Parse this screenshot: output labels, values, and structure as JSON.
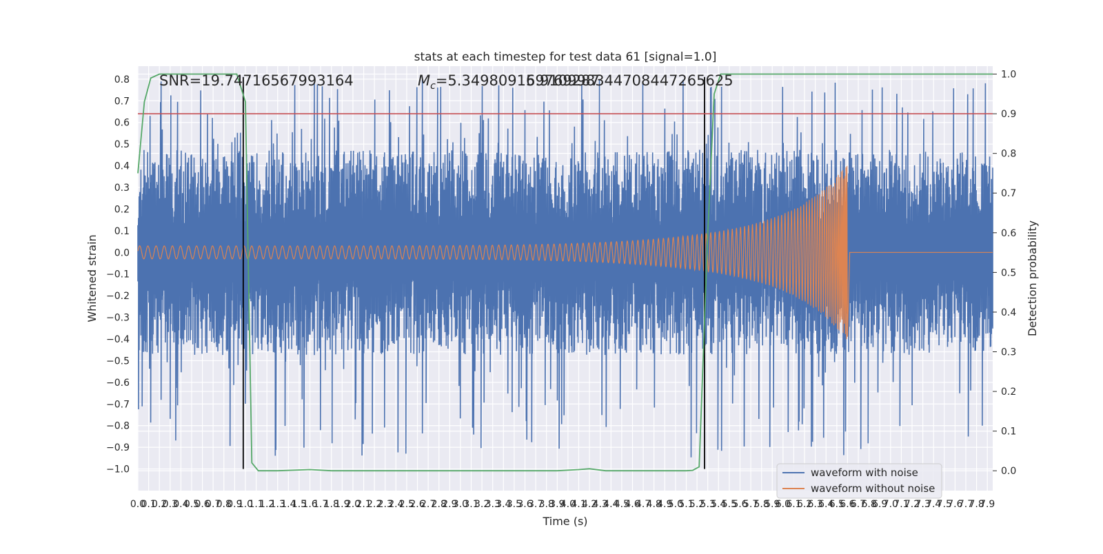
{
  "chart_data": {
    "type": "line",
    "title": "stats at each timestep for test data 61 [signal=1.0]",
    "xlabel": "Time (s)",
    "ylabel": "Whitened strain",
    "ylabel_right": "Detection probability",
    "xlim": [
      0.0,
      7.95
    ],
    "ylim": [
      -1.1,
      0.86
    ],
    "ylim_right": [
      -0.05,
      1.02
    ],
    "x_ticks": [
      "0.0",
      "0.1",
      "0.2",
      "0.3",
      "0.4",
      "0.5",
      "0.6",
      "0.7",
      "0.8",
      "0.9",
      "1.0",
      "1.1",
      "1.2",
      "1.3",
      "1.4",
      "1.5",
      "1.6",
      "1.7",
      "1.8",
      "1.9",
      "2.0",
      "2.1",
      "2.2",
      "2.3",
      "2.4",
      "2.5",
      "2.6",
      "2.7",
      "2.8",
      "2.9",
      "3.0",
      "3.1",
      "3.2",
      "3.3",
      "3.4",
      "3.5",
      "3.6",
      "3.7",
      "3.8",
      "3.9",
      "4.0",
      "4.1",
      "4.2",
      "4.3",
      "4.4",
      "4.5",
      "4.6",
      "4.7",
      "4.8",
      "4.9",
      "5.0",
      "5.1",
      "5.2",
      "5.3",
      "5.4",
      "5.5",
      "5.6",
      "5.7",
      "5.8",
      "5.9",
      "6.0",
      "6.1",
      "6.2",
      "6.3",
      "6.4",
      "6.5",
      "6.6",
      "6.7",
      "6.8",
      "6.9",
      "7.0",
      "7.1",
      "7.2",
      "7.3",
      "7.4",
      "7.5",
      "7.6",
      "7.7",
      "7.8",
      "7.9"
    ],
    "y_ticks": [
      "0.8",
      "0.7",
      "0.6",
      "0.5",
      "0.4",
      "0.3",
      "0.2",
      "0.1",
      "0.0",
      "-0.1",
      "-0.2",
      "-0.3",
      "-0.4",
      "-0.5",
      "-0.6",
      "-0.7",
      "-0.8",
      "-0.9",
      "-1.0"
    ],
    "y_ticks_right": [
      "1.0",
      "0.9",
      "0.8",
      "0.7",
      "0.6",
      "0.5",
      "0.4",
      "0.3",
      "0.2",
      "0.1",
      "0.0"
    ],
    "annotations": {
      "snr": "SNR=19.74716567993164",
      "mc_prefix": "M",
      "mc_sub": "c",
      "mc_value": "=5.349809169769287",
      "mc_overlap": "5.910998344708447265625"
    },
    "threshold": {
      "value": 0.9,
      "axis": "right",
      "color": "#c44e52"
    },
    "vertical_markers": [
      0.98,
      5.27
    ],
    "series": [
      {
        "name": "waveform with noise",
        "color": "#4c72b0",
        "description": "noisy whitened strain, roughly zero-mean with amplitude up to about ±0.8",
        "envelope": {
          "x": [
            0.0,
            7.95
          ],
          "typical": 0.5,
          "peak": 0.8
        }
      },
      {
        "name": "waveform without noise",
        "color": "#dd8452",
        "description": "chirp signal, amplitude grows from ~0.03 to ~0.41 and ends at merger",
        "chirp": {
          "t_start": 0.0,
          "t_merger": 6.6,
          "amp_start": 0.03,
          "amp_end": 0.41,
          "freq_start": 13,
          "freq_end": 120
        }
      },
      {
        "name": "Detection probability",
        "color": "#55a868",
        "axis": "right",
        "x": [
          0.0,
          0.06,
          0.12,
          0.2,
          0.3,
          0.5,
          0.8,
          0.92,
          1.0,
          1.06,
          1.12,
          1.3,
          1.6,
          1.8,
          2.2,
          3.0,
          3.5,
          3.9,
          4.1,
          4.2,
          4.35,
          4.6,
          5.0,
          5.1,
          5.16,
          5.22,
          5.3,
          5.36,
          5.42,
          5.5,
          6.0,
          7.0,
          7.95
        ],
        "y": [
          0.75,
          0.93,
          0.99,
          1.0,
          1.0,
          1.0,
          1.0,
          1.0,
          0.93,
          0.02,
          0.0,
          0.0,
          0.003,
          0.0,
          0.0,
          0.0,
          0.0,
          0.0,
          0.003,
          0.005,
          0.0,
          0.0,
          0.0,
          0.0,
          0.001,
          0.01,
          0.6,
          0.95,
          1.0,
          1.0,
          1.0,
          1.0,
          1.0
        ]
      }
    ],
    "legend": {
      "location": "lower-right",
      "entries": [
        "waveform with noise",
        "waveform without noise"
      ]
    }
  }
}
